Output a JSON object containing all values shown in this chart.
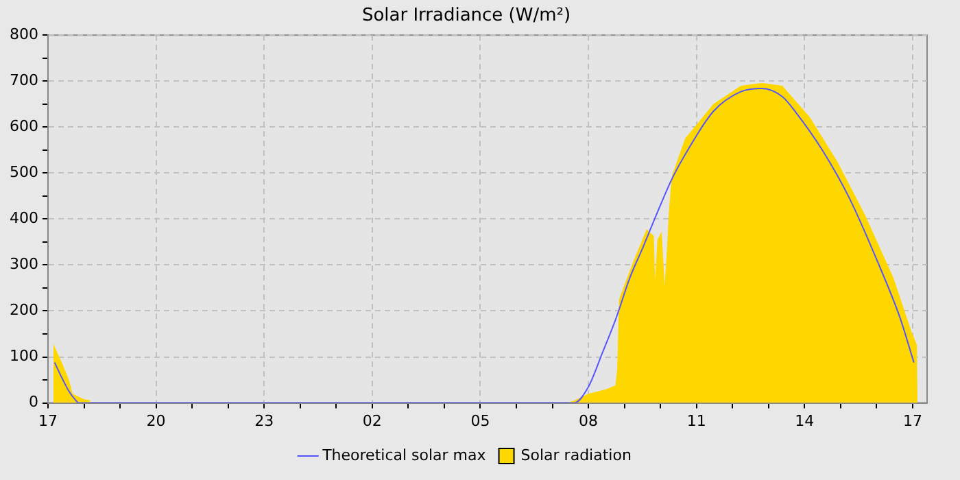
{
  "chart_data": {
    "type": "area",
    "title": "Solar Irradiance (W/m²)",
    "legend": "bottom",
    "grid": true,
    "line_style": "solid",
    "marker": "none",
    "xlim": [
      "--01-01T17:00",
      "--01-02T17:24"
    ],
    "xticks": [
      {
        "value": "--01-01T17:00",
        "label": "17"
      },
      {
        "value": "--01-01T18:00",
        "label": null
      },
      {
        "value": "--01-01T19:00",
        "label": null
      },
      {
        "value": "--01-01T20:00",
        "label": "20"
      },
      {
        "value": "--01-01T21:00",
        "label": null
      },
      {
        "value": "--01-01T22:00",
        "label": null
      },
      {
        "value": "--01-01T23:00",
        "label": "23"
      },
      {
        "value": "--01-02T00:00",
        "label": null
      },
      {
        "value": "--01-02T01:00",
        "label": null
      },
      {
        "value": "--01-02T02:00",
        "label": "02"
      },
      {
        "value": "--01-02T03:00",
        "label": null
      },
      {
        "value": "--01-02T04:00",
        "label": null
      },
      {
        "value": "--01-02T05:00",
        "label": "05"
      },
      {
        "value": "--01-02T06:00",
        "label": null
      },
      {
        "value": "--01-02T07:00",
        "label": null
      },
      {
        "value": "--01-02T08:00",
        "label": "08"
      },
      {
        "value": "--01-02T09:00",
        "label": null
      },
      {
        "value": "--01-02T10:00",
        "label": null
      },
      {
        "value": "--01-02T11:00",
        "label": "11"
      },
      {
        "value": "--01-02T12:00",
        "label": null
      },
      {
        "value": "--01-02T13:00",
        "label": null
      },
      {
        "value": "--01-02T14:00",
        "label": "14"
      },
      {
        "value": "--01-02T15:00",
        "label": null
      },
      {
        "value": "--01-02T16:00",
        "label": null
      },
      {
        "value": "--01-02T17:00",
        "label": "17"
      }
    ],
    "ylim": [
      0,
      800
    ],
    "yticks": [
      0,
      {
        "value": 50,
        "label": null
      },
      100,
      {
        "value": 150,
        "label": null
      },
      200,
      {
        "value": 250,
        "label": null
      },
      300,
      {
        "value": 350,
        "label": null
      },
      400,
      {
        "value": 450,
        "label": null
      },
      500,
      {
        "value": 550,
        "label": null
      },
      600,
      {
        "value": 650,
        "label": null
      },
      700,
      {
        "value": 750,
        "label": null
      },
      800
    ],
    "series": [
      {
        "name": "Theoretical solar max",
        "type": "line",
        "color": "#5555ff",
        "x": [
          "--01-01T17:11",
          "--01-01T17:23",
          "--01-01T17:35",
          "--01-01T17:46",
          "--01-01T17:51",
          "--01-02T07:36",
          "--01-02T08:00",
          "--01-02T08:23",
          "--01-02T08:46",
          "--01-02T09:09",
          "--01-02T09:32",
          "--01-02T09:55",
          "--01-02T10:19",
          "--01-02T10:41",
          "--01-02T11:28",
          "--01-02T12:14",
          "--01-02T12:49",
          "--01-02T13:23",
          "--01-02T13:46",
          "--01-02T14:28",
          "--01-02T15:14",
          "--01-02T16:00",
          "--01-02T16:39",
          "--01-02T17:02"
        ],
        "values": [
          88,
          55,
          25,
          6,
          0,
          0,
          35,
          108,
          184,
          272,
          342,
          415,
          487,
          540,
          634,
          677,
          684,
          666,
          631,
          553,
          447,
          312,
          185,
          88
        ]
      },
      {
        "name": "Solar radiation",
        "type": "area",
        "color": "#ffd700",
        "x": [
          "--01-01T17:09",
          "--01-01T17:23",
          "--01-01T17:35",
          "--01-01T17:41",
          "--01-01T18:00",
          "--01-01T18:09",
          "--01-01T18:12",
          "--01-02T07:24",
          "--01-02T07:36",
          "--01-02T08:00",
          "--01-02T08:30",
          "--01-02T08:45",
          "--01-02T08:48",
          "--01-02T08:51",
          "--01-02T08:58",
          "--01-02T09:16",
          "--01-02T09:37",
          "--01-02T09:49",
          "--01-02T09:51",
          "--01-02T09:55",
          "--01-02T10:02",
          "--01-02T10:07",
          "--01-02T10:11",
          "--01-02T10:14",
          "--01-02T10:19",
          "--01-02T10:41",
          "--01-02T11:28",
          "--01-02T12:14",
          "--01-02T12:49",
          "--01-02T13:23",
          "--01-02T14:09",
          "--01-02T14:55",
          "--01-02T15:41",
          "--01-02T16:28",
          "--01-02T16:58",
          "--01-02T17:07",
          "--01-02T17:08"
        ],
        "values": [
          128,
          88,
          50,
          20,
          8,
          6,
          0,
          0,
          5,
          20,
          30,
          38,
          75,
          225,
          250,
          312,
          378,
          363,
          268,
          355,
          373,
          255,
          340,
          416,
          494,
          575,
          650,
          690,
          696,
          690,
          621,
          524,
          408,
          272,
          155,
          126,
          0
        ]
      }
    ]
  }
}
